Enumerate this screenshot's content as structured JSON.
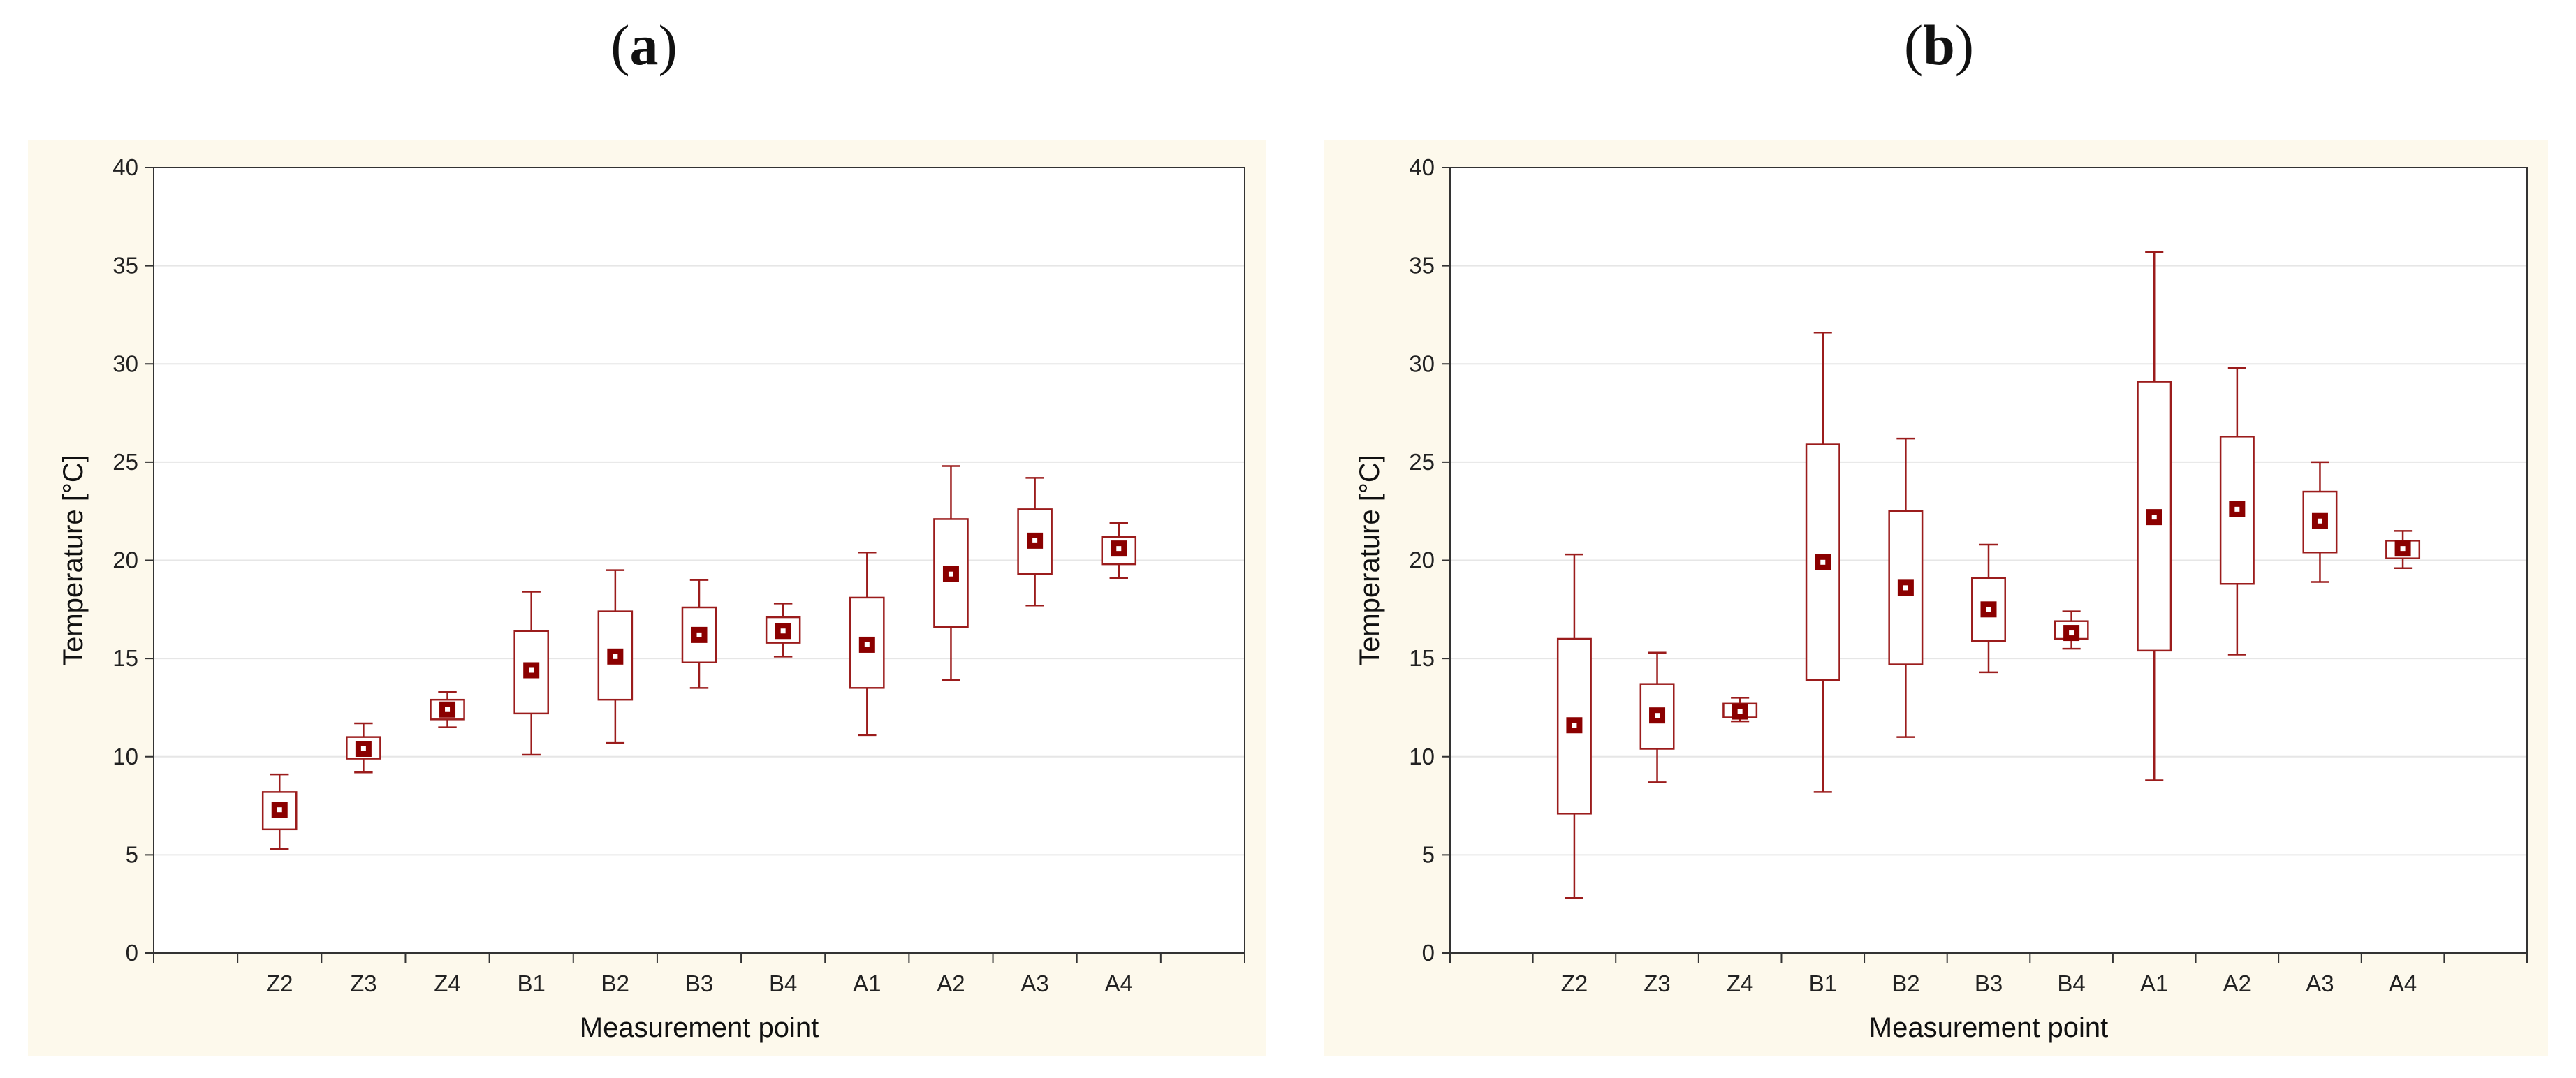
{
  "panels": [
    {
      "letter": "a",
      "open": "(",
      "close": ")"
    },
    {
      "letter": "b",
      "open": "(",
      "close": ")"
    }
  ],
  "colors": {
    "panel_bg": "#fdf9ec",
    "plot_bg": "#ffffff",
    "box": "#9b1c1c",
    "marker_fill": "#8b0000",
    "grid": "#e6e6e6",
    "axis": "#333333"
  },
  "chart_data": [
    {
      "type": "box",
      "id": "a",
      "xlabel": "Measurement point",
      "ylabel": "Temperature [°C]",
      "ylim": [
        0,
        40
      ],
      "yticks": [
        0,
        5,
        10,
        15,
        20,
        25,
        30,
        35,
        40
      ],
      "grid": true,
      "categories": [
        "Z2",
        "Z3",
        "Z4",
        "B1",
        "B2",
        "B3",
        "B4",
        "A1",
        "A2",
        "A3",
        "A4"
      ],
      "median": [
        7.3,
        10.4,
        12.4,
        14.4,
        15.1,
        16.2,
        16.4,
        15.7,
        19.3,
        21.0,
        20.6
      ],
      "q1": [
        6.3,
        9.9,
        11.9,
        12.2,
        12.9,
        14.8,
        15.8,
        13.5,
        16.6,
        19.3,
        19.8
      ],
      "q3": [
        8.2,
        11.0,
        12.9,
        16.4,
        17.4,
        17.6,
        17.1,
        18.1,
        22.1,
        22.6,
        21.2
      ],
      "whisker_low": [
        5.3,
        9.2,
        11.5,
        10.1,
        10.7,
        13.5,
        15.1,
        11.1,
        13.9,
        17.7,
        19.1
      ],
      "whisker_high": [
        9.1,
        11.7,
        13.3,
        18.4,
        19.5,
        19.0,
        17.8,
        20.4,
        24.8,
        24.2,
        21.9
      ]
    },
    {
      "type": "box",
      "id": "b",
      "xlabel": "Measurement point",
      "ylabel": "Temperature [°C]",
      "ylim": [
        0,
        40
      ],
      "yticks": [
        0,
        5,
        10,
        15,
        20,
        25,
        30,
        35,
        40
      ],
      "grid": true,
      "categories": [
        "Z2",
        "Z3",
        "Z4",
        "B1",
        "B2",
        "B3",
        "B4",
        "A1",
        "A2",
        "A3",
        "A4"
      ],
      "median": [
        11.6,
        12.1,
        12.3,
        19.9,
        18.6,
        17.5,
        16.3,
        22.2,
        22.6,
        22.0,
        20.6
      ],
      "q1": [
        7.1,
        10.4,
        12.0,
        13.9,
        14.7,
        15.9,
        16.0,
        15.4,
        18.8,
        20.4,
        20.1
      ],
      "q3": [
        16.0,
        13.7,
        12.7,
        25.9,
        22.5,
        19.1,
        16.9,
        29.1,
        26.3,
        23.5,
        21.0
      ],
      "whisker_low": [
        2.8,
        8.7,
        11.8,
        8.2,
        11.0,
        14.3,
        15.5,
        8.8,
        15.2,
        18.9,
        19.6
      ],
      "whisker_high": [
        20.3,
        15.3,
        13.0,
        31.6,
        26.2,
        20.8,
        17.4,
        35.7,
        29.8,
        25.0,
        21.5
      ]
    }
  ]
}
